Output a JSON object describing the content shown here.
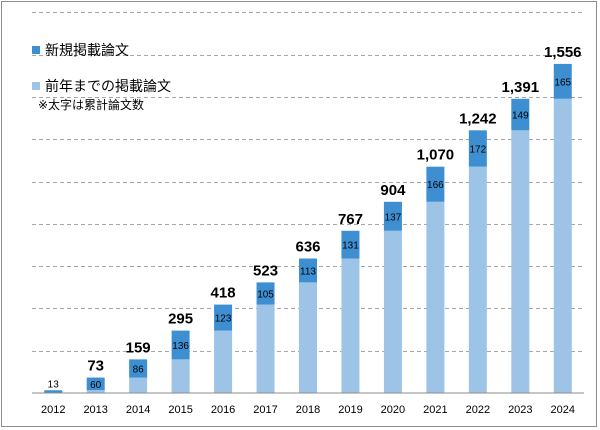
{
  "chart_data": {
    "type": "bar",
    "stacked": true,
    "categories": [
      "2012",
      "2013",
      "2014",
      "2015",
      "2016",
      "2017",
      "2018",
      "2019",
      "2020",
      "2021",
      "2022",
      "2023",
      "2024"
    ],
    "series": [
      {
        "name": "前年までの掲載論文",
        "values": [
          0,
          13,
          73,
          159,
          295,
          418,
          523,
          636,
          767,
          904,
          1070,
          1242,
          1391
        ],
        "color": "#9dc3e6"
      },
      {
        "name": "新規掲載論文",
        "values": [
          13,
          60,
          86,
          136,
          123,
          105,
          113,
          131,
          137,
          166,
          172,
          149,
          165
        ],
        "color": "#3d8fd1"
      }
    ],
    "totals": [
      "13",
      "73",
      "159",
      "295",
      "418",
      "523",
      "636",
      "767",
      "904",
      "1,070",
      "1,242",
      "1,391",
      "1,556"
    ],
    "new_labels": [
      "13",
      "60",
      "86",
      "136",
      "123",
      "105",
      "113",
      "131",
      "137",
      "166",
      "172",
      "149",
      "165"
    ],
    "ylim": [
      0,
      1800
    ],
    "grid": true,
    "legend_position": "top-left",
    "note": "※太字は累計論文数",
    "xlabel": "",
    "ylabel": ""
  }
}
